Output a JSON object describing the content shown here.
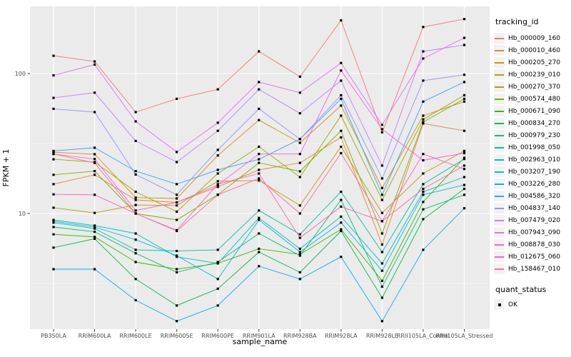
{
  "chart_data": {
    "type": "line",
    "title": "",
    "xlabel": "sample_name",
    "ylabel": "FPKM + 1",
    "legend_title": "tracking_id",
    "quant_status_title": "quant_status",
    "quant_status_items": [
      {
        "label": "OK",
        "marker": "black-square"
      }
    ],
    "panel_bg": "#EBEBEB",
    "grid_color": "#FFFFFF",
    "point_color": "#000000",
    "tick_color": "#333333",
    "tick_label_color": "#4D4D4D",
    "legend_position": "right",
    "y_axis": {
      "scale": "log10",
      "tick_labels": [
        "100",
        "10"
      ],
      "major_ticks": [
        100,
        10
      ],
      "minor_breaks": [
        31.623,
        3.162
      ],
      "range": [
        1.5,
        305
      ]
    },
    "categories": [
      "PB350LA",
      "RRIM600LA",
      "RRIM600LE",
      "RRIM600SE",
      "RRIM600PE",
      "RRIM901LA",
      "RRIM928BA",
      "RRIM928LA",
      "RRIM928LE",
      "RRII105LA_Control",
      "RRII105LA_Stressed"
    ],
    "series": [
      {
        "name": "Hb_000009_160",
        "color": "#F8766D",
        "values": [
          134,
          122,
          53,
          66,
          77,
          144,
          95,
          240,
          38,
          215,
          245
        ]
      },
      {
        "name": "Hb_000010_460",
        "color": "#EA8331",
        "values": [
          16.2,
          18.9,
          12.5,
          12,
          15.5,
          20.5,
          23,
          35,
          6,
          44,
          39
        ]
      },
      {
        "name": "Hb_000205_270",
        "color": "#D89000",
        "values": [
          27.4,
          26.5,
          13,
          12.8,
          26,
          46.5,
          32,
          59,
          15.2,
          50,
          63
        ]
      },
      {
        "name": "Hb_000239_010",
        "color": "#C09B00",
        "values": [
          11,
          10.1,
          11.5,
          11.4,
          17,
          17.2,
          11.4,
          30,
          10.1,
          19.3,
          28
        ]
      },
      {
        "name": "Hb_000270_370",
        "color": "#A3A500",
        "values": [
          24.4,
          23.3,
          14.3,
          10.3,
          19.3,
          30,
          18.2,
          50,
          12.5,
          47,
          70
        ]
      },
      {
        "name": "Hb_000574_480",
        "color": "#7CAE00",
        "values": [
          18.9,
          20.1,
          10,
          9,
          13.6,
          23,
          20,
          39,
          7.2,
          45,
          66
        ]
      },
      {
        "name": "Hb_000671_090",
        "color": "#39B600",
        "values": [
          7.1,
          6.8,
          4.5,
          4,
          4.4,
          5.6,
          5.1,
          7.7,
          3.3,
          12.1,
          25
        ]
      },
      {
        "name": "Hb_000834_270",
        "color": "#00BB4E",
        "values": [
          5.7,
          6.6,
          3.4,
          2.2,
          2.9,
          5.3,
          3.8,
          7.5,
          2.5,
          9.1,
          15
        ]
      },
      {
        "name": "Hb_000979_230",
        "color": "#00BF7D",
        "values": [
          8,
          7.4,
          5.2,
          3.8,
          4.5,
          7.2,
          5,
          12.5,
          3,
          10.7,
          13.6
        ]
      },
      {
        "name": "Hb_001998_050",
        "color": "#00C1A3",
        "values": [
          8.6,
          7.8,
          5.5,
          5.4,
          5.5,
          10.5,
          7.1,
          14.3,
          5.3,
          16.2,
          24.5
        ]
      },
      {
        "name": "Hb_002963_010",
        "color": "#00BFC4",
        "values": [
          9,
          8.2,
          7.2,
          4.9,
          4.4,
          9.3,
          5.6,
          9.5,
          4.4,
          14.3,
          18.2
        ]
      },
      {
        "name": "Hb_003207_190",
        "color": "#00BAE0",
        "values": [
          8.8,
          8,
          6.5,
          5,
          3.4,
          9,
          5.3,
          8.6,
          3.9,
          13.6,
          16
        ]
      },
      {
        "name": "Hb_003226_280",
        "color": "#00B0F6",
        "values": [
          4,
          4,
          2.4,
          1.7,
          2.2,
          4.2,
          3.4,
          4.9,
          1.7,
          5.5,
          10.9
        ]
      },
      {
        "name": "Hb_004586_320",
        "color": "#35A2FF",
        "values": [
          28,
          29.5,
          20.1,
          16.2,
          20.5,
          24.4,
          34,
          66,
          13.6,
          63,
          87
        ]
      },
      {
        "name": "Hb_004837_140",
        "color": "#9590FF",
        "values": [
          56,
          53,
          19,
          13.6,
          28.5,
          56,
          34,
          70,
          17.8,
          89,
          98
        ]
      },
      {
        "name": "Hb_007479_020",
        "color": "#C77CFF",
        "values": [
          67,
          73,
          33,
          23.3,
          39,
          77,
          52,
          89,
          22,
          144,
          160
        ]
      },
      {
        "name": "Hb_007943_090",
        "color": "#E76BF3",
        "values": [
          97,
          116,
          45.5,
          27.5,
          44.5,
          87,
          73,
          119,
          43,
          128,
          180
        ]
      },
      {
        "name": "Hb_008878_030",
        "color": "#FA62DB",
        "values": [
          26.6,
          24.5,
          10.5,
          12,
          16,
          26.6,
          26.6,
          105,
          40,
          24,
          27
        ]
      },
      {
        "name": "Hb_012675_060",
        "color": "#FF62BC",
        "values": [
          13.7,
          13.6,
          10,
          7.6,
          16.2,
          19.3,
          6.7,
          11.2,
          8.8,
          26.6,
          20.8
        ]
      },
      {
        "name": "Hb_158467_010",
        "color": "#FF6A98",
        "values": [
          26.6,
          23,
          10,
          7.5,
          13.6,
          17.8,
          10,
          27,
          8.8,
          15,
          22
        ]
      }
    ]
  }
}
